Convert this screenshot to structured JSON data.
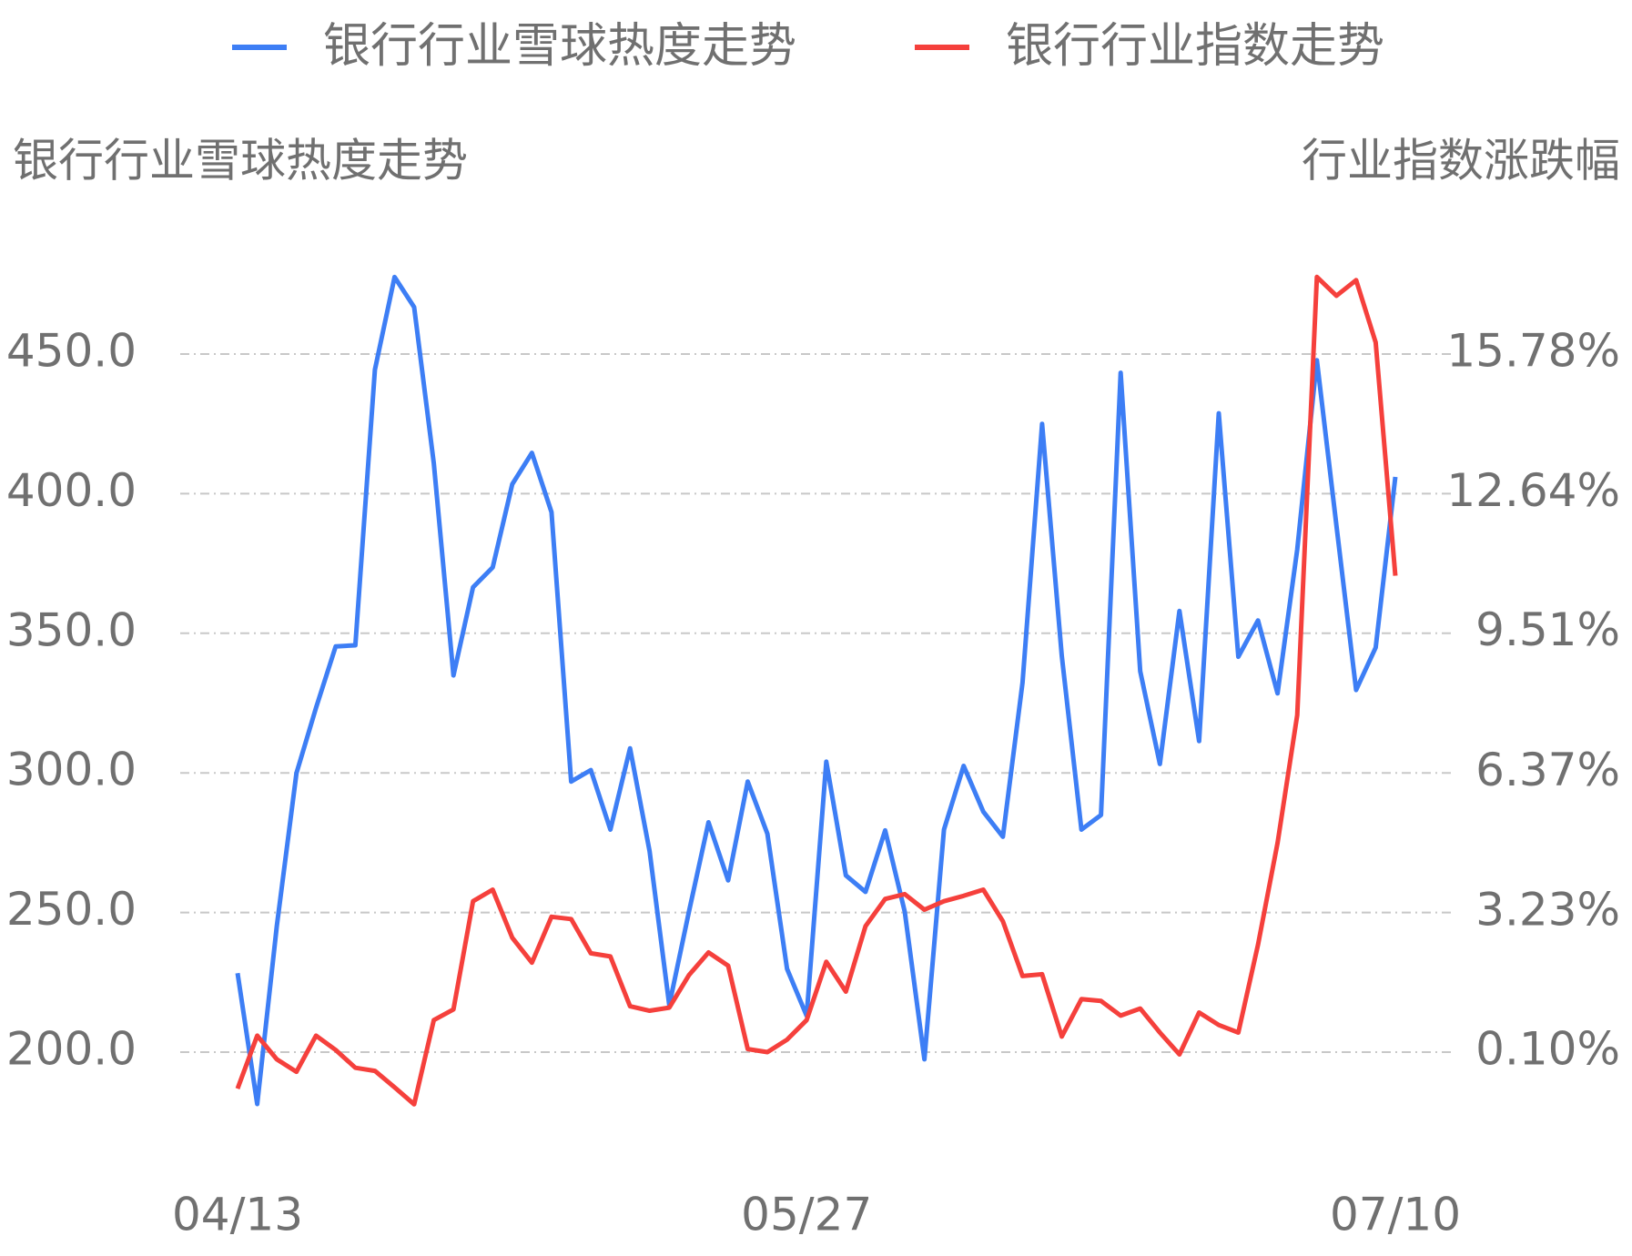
{
  "chart_data": {
    "type": "line",
    "y_title": "银行行业雪球热度走势",
    "y2_title": "行业指数涨跌幅",
    "categories": [
      "04/13",
      null,
      null,
      null,
      null,
      null,
      null,
      null,
      null,
      null,
      null,
      null,
      null,
      null,
      null,
      null,
      null,
      null,
      null,
      null,
      null,
      null,
      null,
      null,
      null,
      null,
      null,
      null,
      null,
      "05/27",
      null,
      null,
      null,
      null,
      null,
      null,
      null,
      null,
      null,
      null,
      null,
      null,
      null,
      null,
      null,
      null,
      null,
      null,
      null,
      null,
      null,
      null,
      null,
      null,
      null,
      null,
      null,
      null,
      null,
      "07/10"
    ],
    "series": [
      {
        "name": "银行行业雪球热度走势",
        "color": "#3d7ef5",
        "values": [
          228.3,
          181.4,
          245.1,
          299.9,
          323.3,
          345.3,
          345.7,
          444.4,
          477.6,
          466.8,
          410.9,
          334.9,
          366.5,
          373.6,
          403.4,
          414.6,
          393.4,
          296.9,
          301.0,
          279.7,
          308.8,
          271.9,
          216.8,
          250.3,
          282.3,
          261.5,
          296.9,
          278.2,
          229.8,
          213.0,
          304.0,
          263.3,
          257.4,
          279.4,
          250.3,
          197.4,
          279.7,
          302.5,
          286.1,
          277.1,
          332.3,
          425.0,
          342.0,
          279.7,
          284.9,
          443.3,
          336.4,
          303.2,
          358.0,
          311.4,
          428.8,
          341.6,
          354.6,
          328.5,
          380.0,
          447.8,
          388.5,
          329.7,
          344.9,
          406.0
        ]
      },
      {
        "name": "银行行业指数走势",
        "color": "#f5403c",
        "axis": "y2",
        "values": [
          -0.72,
          0.47,
          -0.06,
          -0.34,
          0.47,
          0.15,
          -0.25,
          -0.32,
          -0.69,
          -1.07,
          0.82,
          1.06,
          3.49,
          3.75,
          2.67,
          2.11,
          3.14,
          3.09,
          2.32,
          2.25,
          1.13,
          1.03,
          1.1,
          1.83,
          2.34,
          2.04,
          0.17,
          0.1,
          0.38,
          0.82,
          2.13,
          1.46,
          2.93,
          3.54,
          3.65,
          3.3,
          3.49,
          3.61,
          3.75,
          3.04,
          1.81,
          1.85,
          0.45,
          1.29,
          1.25,
          0.92,
          1.08,
          0.54,
          0.05,
          0.99,
          0.71,
          0.54,
          2.51,
          4.8,
          7.67,
          17.51,
          17.09,
          17.44,
          16.04,
          10.8
        ]
      }
    ],
    "ylim": [
      170,
      480
    ],
    "yticks": [
      {
        "value": 200,
        "label": "200.0"
      },
      {
        "value": 250,
        "label": "250.0"
      },
      {
        "value": 300,
        "label": "300.0"
      },
      {
        "value": 350,
        "label": "350.0"
      },
      {
        "value": 400,
        "label": "400.0"
      },
      {
        "value": 450,
        "label": "450.0"
      }
    ],
    "y2lim": [
      -1.78,
      17.66
    ],
    "y2ticks": [
      {
        "value": 0.1,
        "label": "0.10%"
      },
      {
        "value": 3.23,
        "label": "3.23%"
      },
      {
        "value": 6.37,
        "label": "6.37%"
      },
      {
        "value": 9.51,
        "label": "9.51%"
      },
      {
        "value": 12.64,
        "label": "12.64%"
      },
      {
        "value": 15.78,
        "label": "15.78%"
      }
    ],
    "grid": true,
    "legend": "top"
  }
}
